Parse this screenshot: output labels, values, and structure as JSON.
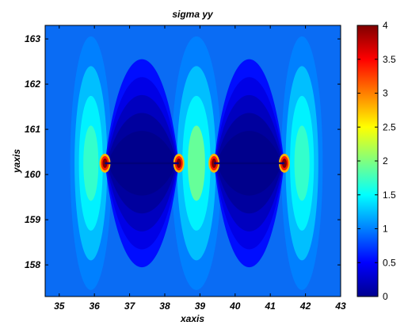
{
  "chart_data": {
    "type": "heatmap",
    "title": "sigma yy",
    "xlabel": "xaxis",
    "ylabel": "yaxis",
    "xlim": [
      34.6,
      43.0
    ],
    "ylim": [
      157.3,
      163.3
    ],
    "x_ticks": [
      "35",
      "36",
      "37",
      "38",
      "39",
      "40",
      "41",
      "42",
      "43"
    ],
    "y_ticks": [
      "158",
      "159",
      "160",
      "161",
      "162",
      "163"
    ],
    "colorbar": {
      "range": [
        0,
        4
      ],
      "ticks": [
        "0",
        "0.5",
        "1",
        "1.5",
        "2",
        "2.5",
        "3",
        "3.5",
        "4"
      ],
      "colormap": "jet"
    },
    "field": {
      "background": 0.78,
      "features": [
        {
          "kind": "low-stress-region",
          "x_center": 37.4,
          "y_center": 160.25,
          "x_extent": [
            36.3,
            38.4
          ],
          "value": 0.05
        },
        {
          "kind": "low-stress-region",
          "x_center": 40.4,
          "y_center": 160.25,
          "x_extent": [
            39.4,
            41.4
          ],
          "value": 0.05
        },
        {
          "kind": "stress-peak",
          "x": 36.3,
          "y": 160.25,
          "value": 4.0
        },
        {
          "kind": "stress-peak",
          "x": 38.4,
          "y": 160.25,
          "value": 4.0
        },
        {
          "kind": "stress-peak",
          "x": 39.4,
          "y": 160.25,
          "value": 4.0
        },
        {
          "kind": "stress-peak",
          "x": 41.4,
          "y": 160.25,
          "value": 4.0
        },
        {
          "kind": "elevated-region",
          "x_center": 38.9,
          "y_center": 160.25,
          "value": 1.9
        },
        {
          "kind": "elevated-region",
          "x_center": 35.9,
          "y_center": 160.25,
          "value": 1.7
        },
        {
          "kind": "elevated-region",
          "x_center": 41.9,
          "y_center": 160.25,
          "value": 1.7
        }
      ]
    }
  }
}
